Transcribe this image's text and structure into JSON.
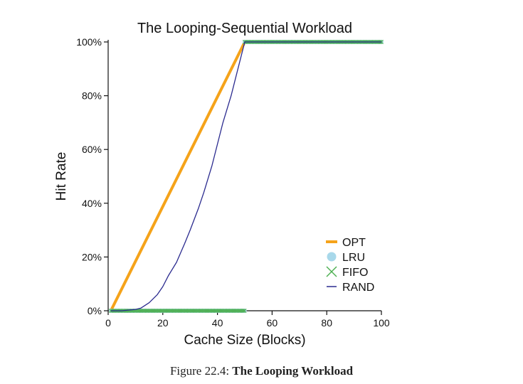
{
  "chart_data": {
    "type": "line",
    "title": "The Looping-Sequential Workload",
    "xlabel": "Cache Size (Blocks)",
    "ylabel": "Hit Rate",
    "xlim": [
      0,
      100
    ],
    "ylim": [
      0,
      100
    ],
    "x_ticks": [
      0,
      20,
      40,
      60,
      80,
      100
    ],
    "y_ticks": [
      0,
      20,
      40,
      60,
      80,
      100
    ],
    "x_tick_labels": [
      "0",
      "20",
      "40",
      "60",
      "80",
      "100"
    ],
    "y_tick_labels": [
      "0%",
      "20%",
      "40%",
      "60%",
      "80%",
      "100%"
    ],
    "grid": false,
    "legend_position": "lower-right",
    "series": [
      {
        "name": "OPT",
        "style": "thick-line",
        "color": "#f5a31a",
        "x": [
          1,
          50,
          100
        ],
        "y": [
          0,
          100,
          100
        ]
      },
      {
        "name": "LRU",
        "style": "dots",
        "color": "#a8d8ea",
        "x": [
          1,
          49.9,
          50,
          100
        ],
        "y": [
          0,
          0,
          100,
          100
        ]
      },
      {
        "name": "FIFO",
        "style": "crosses",
        "color": "#4caf50",
        "x": [
          1,
          49.9,
          50,
          100
        ],
        "y": [
          0,
          0,
          100,
          100
        ]
      },
      {
        "name": "RAND",
        "style": "thin-line",
        "color": "#2b2b8f",
        "x": [
          1,
          5,
          10,
          12,
          15,
          18,
          20,
          22,
          25,
          28,
          30,
          33,
          35,
          38,
          40,
          42,
          45,
          48,
          50,
          100
        ],
        "y": [
          0,
          0,
          0.5,
          1,
          3,
          6,
          9,
          13,
          18,
          25,
          30,
          38,
          44,
          54,
          62,
          70,
          80,
          92,
          100,
          100
        ]
      }
    ]
  },
  "caption": {
    "prefix": "Figure 22.4: ",
    "bold": "The Looping Workload"
  }
}
